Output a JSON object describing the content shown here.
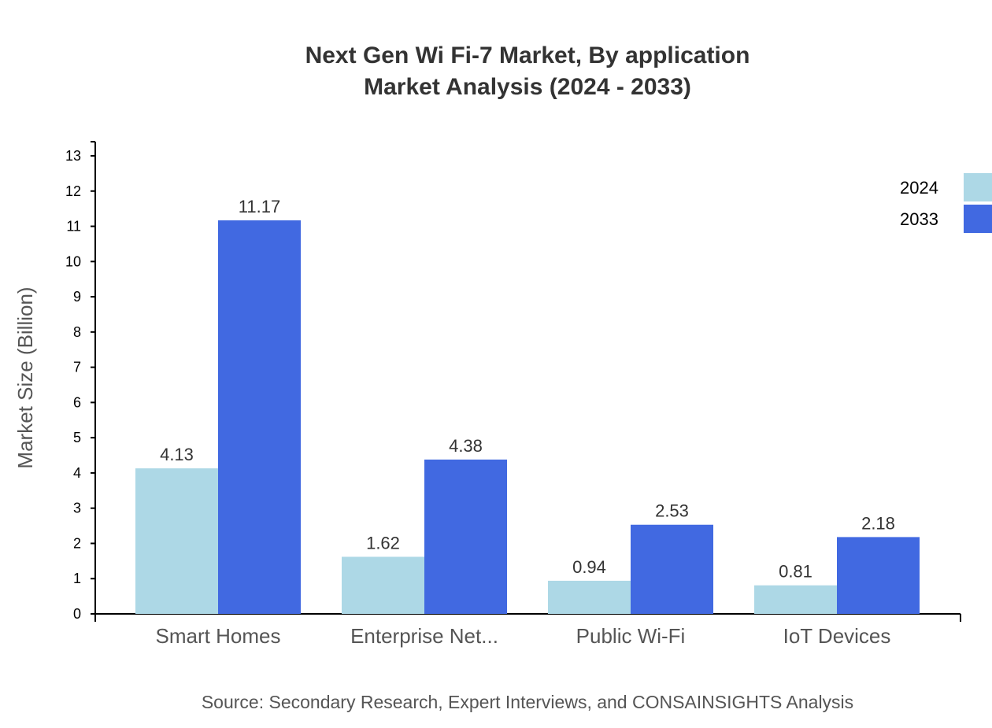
{
  "chart_data": {
    "type": "bar",
    "title": "Next Gen Wi Fi-7 Market, By application",
    "subtitle": "Market Analysis (2024 - 2033)",
    "xlabel": "",
    "ylabel": "Market Size (Billion)",
    "ylim": [
      0,
      13.4
    ],
    "yticks": [
      0,
      1,
      2,
      3,
      4,
      5,
      6,
      7,
      8,
      9,
      10,
      11,
      12,
      13
    ],
    "categories": [
      "Smart Homes",
      "Enterprise Net...",
      "Public Wi-Fi",
      "IoT Devices"
    ],
    "series": [
      {
        "name": "2024",
        "color": "#ADD8E6",
        "values": [
          4.13,
          1.62,
          0.94,
          0.81
        ]
      },
      {
        "name": "2033",
        "color": "#4169E1",
        "values": [
          11.17,
          4.38,
          2.53,
          2.18
        ]
      }
    ],
    "grid": false,
    "legend_position": "top-right",
    "source": "Source: Secondary Research, Expert Interviews, and CONSAINSIGHTS Analysis"
  }
}
